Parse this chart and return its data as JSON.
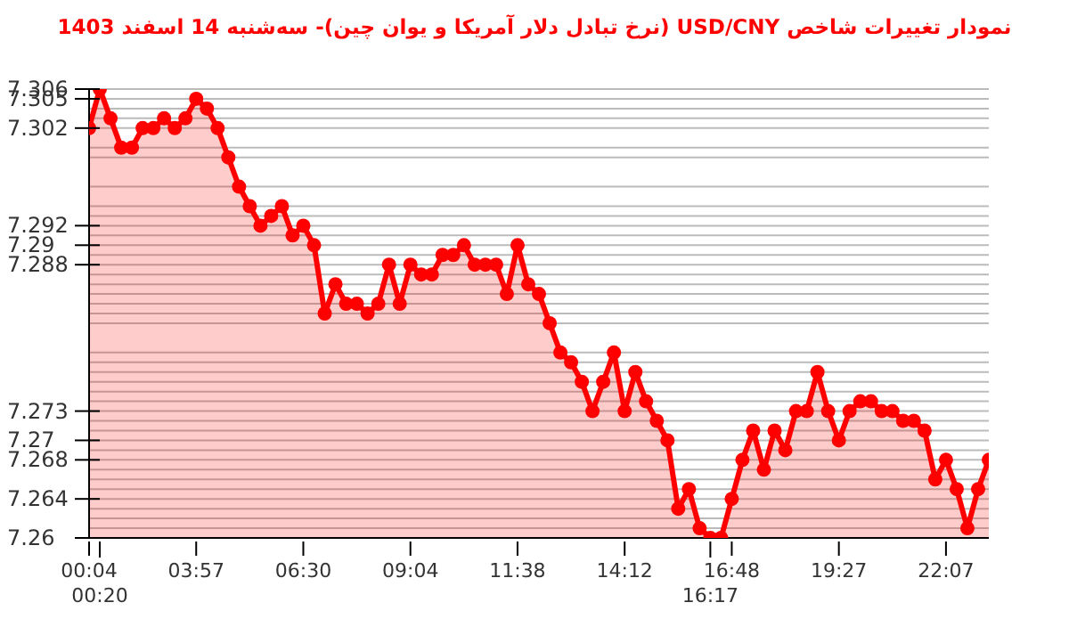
{
  "chart_data": {
    "type": "area",
    "title": "نمودار تغییرات شاخص USD/CNY (نرخ تبادل دلار آمریکا و یوان چین)- سه‌شنبه  14 اسفند 1403",
    "categories": [
      "00:04",
      "00:20",
      null,
      null,
      null,
      null,
      null,
      null,
      null,
      null,
      "03:57",
      null,
      null,
      null,
      null,
      null,
      null,
      null,
      null,
      null,
      "06:30",
      null,
      null,
      null,
      null,
      null,
      null,
      null,
      null,
      null,
      "09:04",
      null,
      null,
      null,
      null,
      null,
      null,
      null,
      null,
      null,
      "11:38",
      null,
      null,
      null,
      null,
      null,
      null,
      null,
      null,
      null,
      "14:12",
      null,
      null,
      null,
      null,
      null,
      null,
      null,
      "16:17",
      null,
      "16:48",
      null,
      null,
      null,
      null,
      null,
      null,
      null,
      null,
      null,
      "19:27",
      null,
      null,
      null,
      null,
      null,
      null,
      null,
      null,
      null,
      "22:07",
      null,
      null,
      null,
      null
    ],
    "series": [
      {
        "color": "#ff0000",
        "values": [
          7.302,
          7.306,
          7.303,
          7.3,
          7.3,
          7.302,
          7.302,
          7.303,
          7.302,
          7.303,
          7.305,
          7.304,
          7.302,
          7.299,
          7.296,
          7.294,
          7.292,
          7.293,
          7.294,
          7.291,
          7.292,
          7.29,
          7.283,
          7.286,
          7.284,
          7.284,
          7.283,
          7.284,
          7.288,
          7.284,
          7.288,
          7.287,
          7.287,
          7.289,
          7.289,
          7.29,
          7.288,
          7.288,
          7.288,
          7.285,
          7.29,
          7.286,
          7.285,
          7.282,
          7.279,
          7.278,
          7.276,
          7.273,
          7.276,
          7.279,
          7.273,
          7.277,
          7.274,
          7.272,
          7.27,
          7.263,
          7.265,
          7.261,
          7.26,
          7.26,
          7.264,
          7.268,
          7.271,
          7.267,
          7.271,
          7.269,
          7.273,
          7.273,
          7.277,
          7.273,
          7.27,
          7.273,
          7.274,
          7.274,
          7.273,
          7.273,
          7.272,
          7.272,
          7.271,
          7.266,
          7.268,
          7.265,
          7.261,
          7.265,
          7.268
        ]
      }
    ],
    "ylim": [
      7.26,
      7.306
    ],
    "yticks": [
      7.26,
      {
        "value": 7.261,
        "label": null
      },
      {
        "value": 7.262,
        "label": null
      },
      {
        "value": 7.263,
        "label": null
      },
      7.264,
      {
        "value": 7.265,
        "label": null
      },
      {
        "value": 7.266,
        "label": null
      },
      {
        "value": 7.267,
        "label": null
      },
      7.268,
      {
        "value": 7.269,
        "label": null
      },
      7.27,
      {
        "value": 7.271,
        "label": null
      },
      {
        "value": 7.272,
        "label": null
      },
      7.273,
      {
        "value": 7.274,
        "label": null
      },
      {
        "value": 7.275,
        "label": null
      },
      {
        "value": 7.276,
        "label": null
      },
      {
        "value": 7.277,
        "label": null
      },
      {
        "value": 7.278,
        "label": null
      },
      {
        "value": 7.279,
        "label": null
      },
      {
        "value": 7.282,
        "label": null
      },
      {
        "value": 7.283,
        "label": null
      },
      {
        "value": 7.284,
        "label": null
      },
      {
        "value": 7.285,
        "label": null
      },
      {
        "value": 7.286,
        "label": null
      },
      {
        "value": 7.287,
        "label": null
      },
      7.288,
      {
        "value": 7.289,
        "label": null
      },
      7.29,
      {
        "value": 7.291,
        "label": null
      },
      7.292,
      {
        "value": 7.293,
        "label": null
      },
      {
        "value": 7.294,
        "label": null
      },
      {
        "value": 7.296,
        "label": null
      },
      {
        "value": 7.299,
        "label": null
      },
      {
        "value": 7.3,
        "label": null
      },
      7.302,
      {
        "value": 7.303,
        "label": null
      },
      {
        "value": 7.304,
        "label": null
      },
      7.305,
      7.306
    ],
    "grid": "y",
    "marker": "circle"
  }
}
